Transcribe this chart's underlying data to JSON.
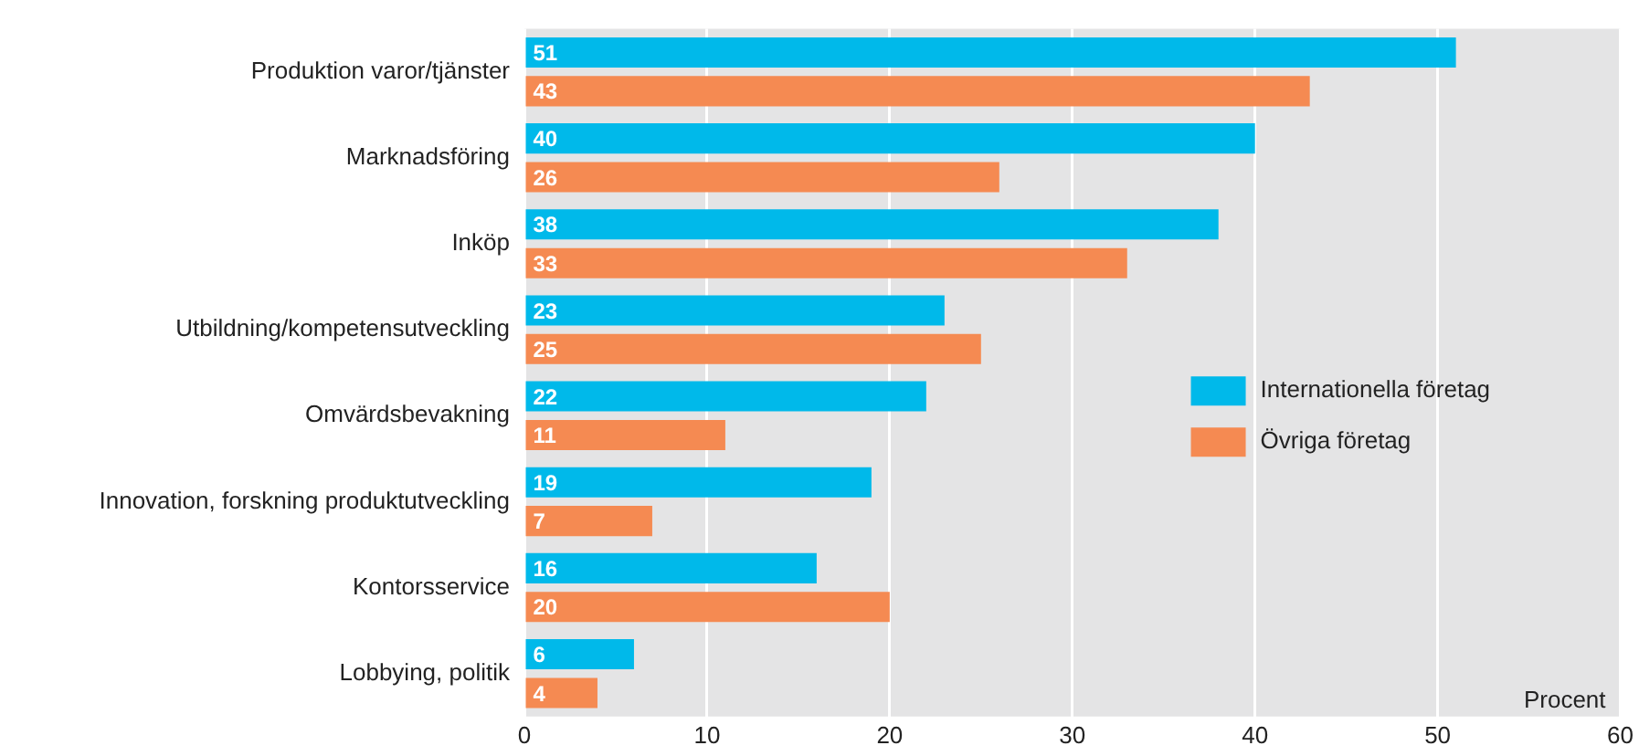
{
  "chart_data": {
    "type": "bar",
    "orientation": "horizontal",
    "xlabel": "Procent",
    "categories": [
      "Produktion varor/tjänster",
      "Marknadsföring",
      "Inköp",
      "Utbildning/kompetensutveckling",
      "Omvärdsbevakning",
      "Innovation, forskning produktutveckling",
      "Kontorsservice",
      "Lobbying, politik"
    ],
    "series": [
      {
        "name": "Internationella företag",
        "color": "#00b9ea",
        "values": [
          51,
          40,
          38,
          23,
          22,
          19,
          16,
          6
        ]
      },
      {
        "name": "Övriga företag",
        "color": "#f58a52",
        "values": [
          43,
          26,
          33,
          25,
          11,
          7,
          20,
          4
        ]
      }
    ],
    "xlim": [
      0,
      60
    ],
    "xticks": [
      0,
      10,
      20,
      30,
      40,
      50,
      60
    ],
    "grid": "x",
    "legend": "right",
    "data_labels": true
  }
}
